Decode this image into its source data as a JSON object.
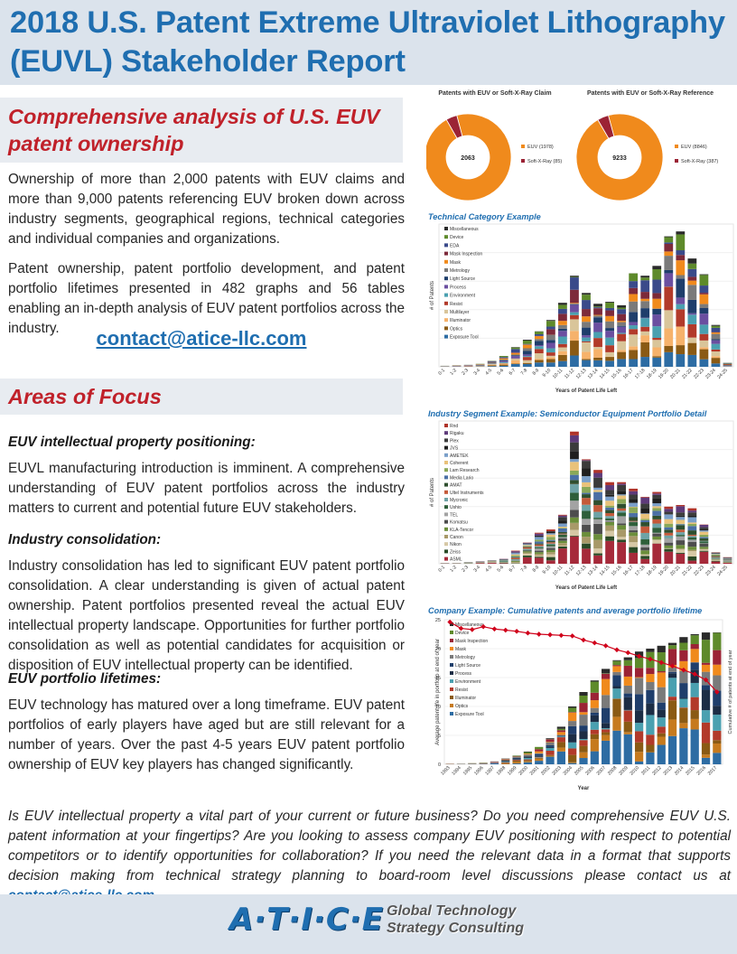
{
  "header": {
    "title": "2018 U.S. Patent Extreme Ultraviolet Lithography (EUVL) Stakeholder Report"
  },
  "section1": {
    "title": "Comprehensive analysis of U.S. EUV patent ownership",
    "para1": "Ownership of more than 2,000 patents with EUV claims and more than 9,000 patents referencing EUV broken down across industry segments, geographical regions, technical categories and individual companies and organizations.",
    "para2": "Patent ownership, patent portfolio development, and patent portfolio lifetimes presented in 482 graphs and 56 tables enabling an in-depth analysis of EUV patent portfolios across the industry.",
    "contact": "contact@atice-llc.com"
  },
  "section2": {
    "title": "Areas of Focus",
    "items": [
      {
        "heading": "EUV intellectual property positioning:",
        "text": "EUVL manufacturing introduction is imminent. A comprehensive understanding of EUV patent portfolios across the industry matters to current and potential future EUV stakeholders."
      },
      {
        "heading": "Industry consolidation:",
        "text": "Industry consolidation has led to significant EUV patent portfolio consolidation. A clear understanding is given of actual patent ownership. Patent portfolios presented reveal the actual EUV intellectual property landscape. Opportunities for further portfolio consolidation as well as potential candidates for acquisition or disposition of  EUV intellectual property can be identified."
      },
      {
        "heading": "EUV portfolio lifetimes:",
        "text": "EUV technology has matured over a long timeframe. EUV patent portfolios of early players have aged but are still relevant for a number of years. Over the past 4-5 years EUV patent portfolio ownership of EUV key players has changed significantly."
      }
    ]
  },
  "bottom": {
    "text": "Is EUV intellectual property a vital part of your current or future business? Do you need comprehensive EUV U.S. patent information at your fingertips? Are you looking to assess company EUV positioning with respect to potential competitors or to identify opportunities for collaboration? If you need the relevant data in a format that supports decision making from technical strategy planning to board-room level discussions please contact us at ",
    "link": "contact@atice-llc.com",
    "end": "."
  },
  "footer": {
    "logo": "A·T·I·C·E",
    "tag_line1": "Global Technology",
    "tag_line2": "Strategy Consulting"
  },
  "colors": {
    "accent": "#1f6eb0",
    "title_red": "#c0212a",
    "band": "#dbe3ec",
    "orange": "#f08a1c",
    "maroon": "#9b2335"
  },
  "chart_data": [
    {
      "type": "pie",
      "title": "Patents with EUV or Soft-X-Ray Claim",
      "center_label": "2063",
      "slices": [
        {
          "label": "EUV  (1978)",
          "value": 1978,
          "color": "#f08a1c"
        },
        {
          "label": "Soft-X-Ray  (85)",
          "value": 85,
          "color": "#9b2335"
        }
      ]
    },
    {
      "type": "pie",
      "title": "Patents with EUV or Soft-X-Ray Reference",
      "center_label": "9233",
      "slices": [
        {
          "label": "EUV  (8846)",
          "value": 8846,
          "color": "#f08a1c"
        },
        {
          "label": "Soft-X-Ray  (387)",
          "value": 387,
          "color": "#9b2335"
        }
      ]
    },
    {
      "type": "bar",
      "caption": "Technical Category Example",
      "xlabel": "Years of Patent Life Left",
      "ylabel": "# of Patents",
      "categories": [
        "0-1",
        "1-2",
        "2-3",
        "3-4",
        "4-5",
        "5-6",
        "6-7",
        "7-8",
        "8-9",
        "9-10",
        "10-11",
        "11-12",
        "12-13",
        "13-14",
        "14-15",
        "15-16",
        "16-17",
        "17-18",
        "18-19",
        "19-20",
        "20-21",
        "21-22",
        "22-23",
        "23-24",
        "24-25"
      ],
      "totals": [
        2,
        3,
        4,
        6,
        12,
        22,
        40,
        55,
        72,
        95,
        130,
        185,
        150,
        128,
        132,
        125,
        190,
        185,
        205,
        265,
        275,
        220,
        188,
        85,
        8
      ],
      "series": [
        {
          "name": "Miscellaneous",
          "color": "#2b2b2b"
        },
        {
          "name": "Device",
          "color": "#5e8a2b"
        },
        {
          "name": "EDA",
          "color": "#3a4a8a"
        },
        {
          "name": "Mask Inspection",
          "color": "#7d2a3a"
        },
        {
          "name": "Mask",
          "color": "#f08a1c"
        },
        {
          "name": "Metrology",
          "color": "#7a7a7a"
        },
        {
          "name": "Light Source",
          "color": "#1f3e6b"
        },
        {
          "name": "Process",
          "color": "#6b4fa0"
        },
        {
          "name": "Environment",
          "color": "#4aa0b0"
        },
        {
          "name": "Resist",
          "color": "#b23a2a"
        },
        {
          "name": "Multilayer",
          "color": "#d9c59a"
        },
        {
          "name": "Illuminator",
          "color": "#f6b26b"
        },
        {
          "name": "Optics",
          "color": "#8a5a14"
        },
        {
          "name": "Exposure Tool",
          "color": "#2d6ca3"
        }
      ]
    },
    {
      "type": "bar",
      "caption": "Industry Segment Example: Semiconductor Equipment Portfolio Detail",
      "xlabel": "Years of Patent Life Left",
      "ylabel": "# of Patents",
      "categories": [
        "0-1",
        "1-2",
        "2-3",
        "3-4",
        "4-5",
        "5-6",
        "6-7",
        "7-8",
        "8-9",
        "9-10",
        "10-11",
        "11-12",
        "12-13",
        "13-14",
        "14-15",
        "15-16",
        "16-17",
        "17-18",
        "18-19",
        "19-20",
        "20-21",
        "21-22",
        "22-23",
        "23-24",
        "24-25"
      ],
      "totals": [
        1,
        1,
        2,
        3,
        4,
        6,
        16,
        26,
        38,
        42,
        60,
        162,
        128,
        115,
        100,
        100,
        92,
        82,
        88,
        70,
        72,
        68,
        48,
        14,
        8
      ],
      "series": [
        {
          "name": "Rnd",
          "color": "#b0342a"
        },
        {
          "name": "Rigaku",
          "color": "#5e3a7a"
        },
        {
          "name": "Plex",
          "color": "#3b3b3b"
        },
        {
          "name": "JVS",
          "color": "#1f1f1f"
        },
        {
          "name": "AMETEK",
          "color": "#7a9fc9"
        },
        {
          "name": "Coherent",
          "color": "#e9c27a"
        },
        {
          "name": "Lam Research",
          "color": "#8aa858"
        },
        {
          "name": "Media Lario",
          "color": "#4a6fa5"
        },
        {
          "name": "AMAT",
          "color": "#2f4f2f"
        },
        {
          "name": "Ultel Instruments",
          "color": "#c45a3a"
        },
        {
          "name": "Mycronic",
          "color": "#6ea3a6"
        },
        {
          "name": "Ushio",
          "color": "#2e5f3a"
        },
        {
          "name": "TEL",
          "color": "#a3a3a3"
        },
        {
          "name": "Komatsu",
          "color": "#4d4d4d"
        },
        {
          "name": "KLA-Tencor",
          "color": "#6b8e3a"
        },
        {
          "name": "Canon",
          "color": "#a89968"
        },
        {
          "name": "Nikon",
          "color": "#d6c8a5"
        },
        {
          "name": "Zeiss",
          "color": "#2a4a26"
        },
        {
          "name": "ASML",
          "color": "#a62a3a"
        }
      ]
    },
    {
      "type": "bar",
      "caption": "Company Example: Cumulative patents and average portfolio lifetime",
      "xlabel": "Year",
      "ylabel": "Average patent life in portfolio at end of year",
      "ylabel_right": "Cumulative # of patents at end of year",
      "y_ticks": [
        0,
        5,
        10,
        15,
        20,
        25
      ],
      "categories": [
        "1993",
        "1994",
        "1995",
        "1996",
        "1997",
        "1998",
        "1999",
        "2000",
        "2001",
        "2002",
        "2003",
        "2004",
        "2005",
        "2006",
        "2007",
        "2008",
        "2009",
        "2010",
        "2011",
        "2012",
        "2013",
        "2014",
        "2015",
        "2016",
        "2017"
      ],
      "totals": [
        0.1,
        0.1,
        0.2,
        0.3,
        0.5,
        1,
        1.5,
        2.2,
        3,
        4.5,
        6.5,
        10,
        12.5,
        14.5,
        16.5,
        18,
        18.5,
        19.5,
        20,
        20.5,
        21,
        22,
        22.5,
        22.8,
        22.8
      ],
      "line_values": [
        24.6,
        23.5,
        23.3,
        23.8,
        23.4,
        23.2,
        23.0,
        22.7,
        22.5,
        22.4,
        22.3,
        22.2,
        21.5,
        21.0,
        20.5,
        19.8,
        19.3,
        18.7,
        18.2,
        17.6,
        17.0,
        16.3,
        15.6,
        14.6,
        12.5
      ],
      "series": [
        {
          "name": "Miscellaneous",
          "color": "#2b2b2b"
        },
        {
          "name": "Device",
          "color": "#5e8a2b"
        },
        {
          "name": "Mask Inspection",
          "color": "#9b2335"
        },
        {
          "name": "Mask",
          "color": "#f08a1c"
        },
        {
          "name": "Metrology",
          "color": "#7a7a7a"
        },
        {
          "name": "Light Source",
          "color": "#1f3e6b"
        },
        {
          "name": "Process",
          "color": "#1c2d45"
        },
        {
          "name": "Environment",
          "color": "#4aa0b0"
        },
        {
          "name": "Resist",
          "color": "#b23a2a"
        },
        {
          "name": "Illuminator",
          "color": "#8a5a14"
        },
        {
          "name": "Optics",
          "color": "#c67a1e"
        },
        {
          "name": "Exposure Tool",
          "color": "#2d6ca3"
        }
      ]
    }
  ]
}
